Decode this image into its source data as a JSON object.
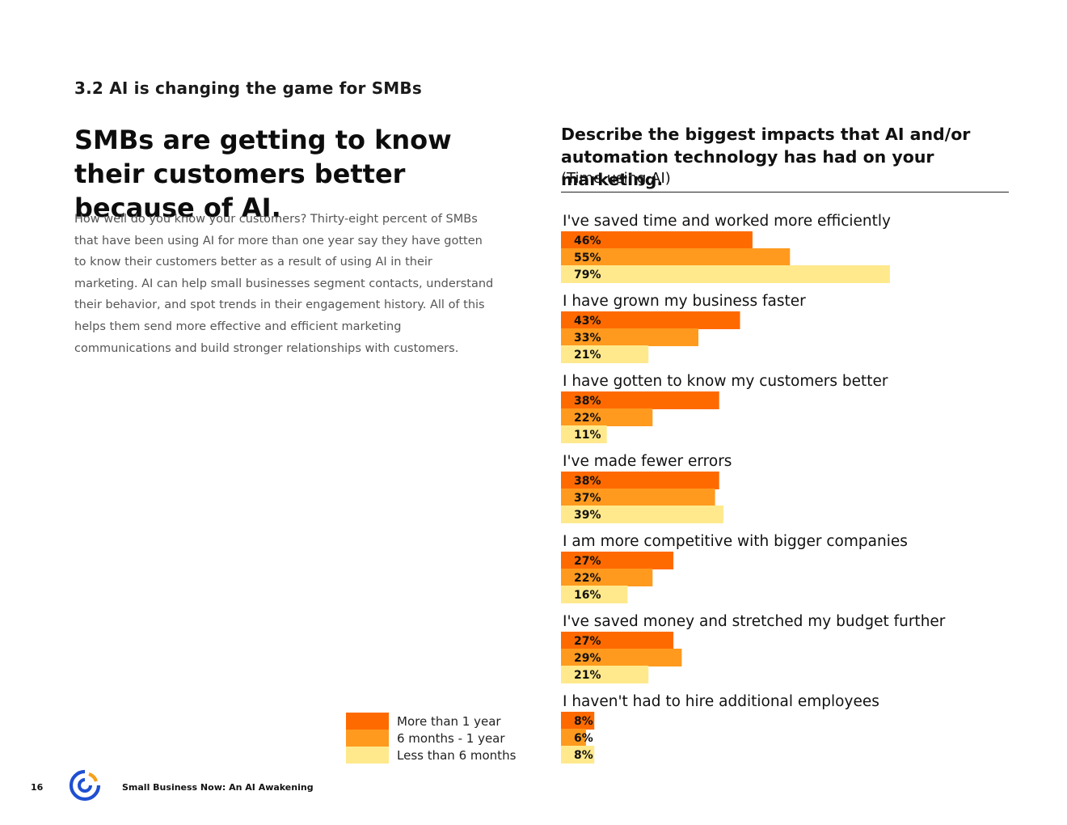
{
  "header": {
    "section_label": "3.2 AI is changing the game for SMBs"
  },
  "main": {
    "headline": "SMBs are getting to know their customers better because of AI.",
    "body": "How well do you know your customers? Thirty-eight percent of SMBs that have been using AI for more than one year say they have gotten to know their customers better as a result of using AI in their marketing. AI can help small businesses segment contacts, understand their behavior, and spot trends in their engagement history. All of this helps them send more effective and efficient marketing communications and build stronger relationships with customers."
  },
  "footer": {
    "page_number": "16",
    "publication": "Small Business Now: An AI Awakening",
    "logo_icon": "brand-logo-icon"
  },
  "chart_data": {
    "type": "bar",
    "orientation": "horizontal",
    "title": "Describe the biggest impacts that AI and/or automation technology has had on your marketing.",
    "subtitle": "(Time using AI)",
    "unit": "%",
    "xlim": [
      0,
      100
    ],
    "categories": [
      "I've saved time and worked more efficiently",
      "I have grown my business faster",
      "I have gotten to know my customers better",
      "I've made fewer errors",
      "I am more competitive with bigger companies",
      "I've saved money and stretched my budget further",
      "I haven't had to hire additional employees"
    ],
    "series": [
      {
        "name": "More than 1 year",
        "color": "#ff6a00",
        "values": [
          46,
          43,
          38,
          38,
          27,
          27,
          8
        ]
      },
      {
        "name": "6 months - 1 year",
        "color": "#ff9a1e",
        "values": [
          55,
          33,
          22,
          37,
          22,
          29,
          6
        ]
      },
      {
        "name": "Less than 6 months",
        "color": "#ffe98c",
        "values": [
          79,
          21,
          11,
          39,
          16,
          21,
          8
        ]
      }
    ],
    "legend_position": "bottom-left",
    "grid": false
  },
  "colors": {
    "accent_orange": "#ff6a00",
    "mid_orange": "#ff9a1e",
    "light_yellow": "#ffe98c",
    "logo_blue": "#1f4fd1"
  }
}
